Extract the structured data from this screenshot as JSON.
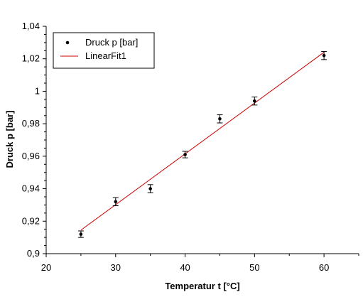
{
  "chart_data": {
    "type": "scatter",
    "xlabel": "Temperatur t [°C]",
    "ylabel": "Druck p [bar]",
    "xlim": [
      20,
      65
    ],
    "ylim": [
      0.9,
      1.04
    ],
    "x_ticks": [
      20,
      30,
      40,
      50,
      60
    ],
    "x_tick_labels": [
      "20",
      "30",
      "40",
      "50",
      "60"
    ],
    "y_ticks": [
      0.9,
      0.92,
      0.94,
      0.96,
      0.98,
      1.0,
      1.02,
      1.04
    ],
    "y_tick_labels": [
      "0,9",
      "0,92",
      "0,94",
      "0,96",
      "0,98",
      "1",
      "1,02",
      "1,04"
    ],
    "grid": false,
    "legend": "top-left",
    "series": [
      {
        "name": "Druck p [bar]",
        "kind": "points-with-errorbars",
        "color": "#000000",
        "x": [
          25,
          30,
          35,
          40,
          45,
          50,
          60
        ],
        "y": [
          0.912,
          0.932,
          0.94,
          0.961,
          0.983,
          0.994,
          1.022
        ],
        "error": [
          0.002,
          0.0025,
          0.0025,
          0.002,
          0.0025,
          0.0025,
          0.0025
        ]
      },
      {
        "name": "LinearFit1",
        "kind": "line",
        "color": "#cc0000",
        "x": [
          25,
          60
        ],
        "y": [
          0.9145,
          1.024
        ]
      }
    ]
  }
}
